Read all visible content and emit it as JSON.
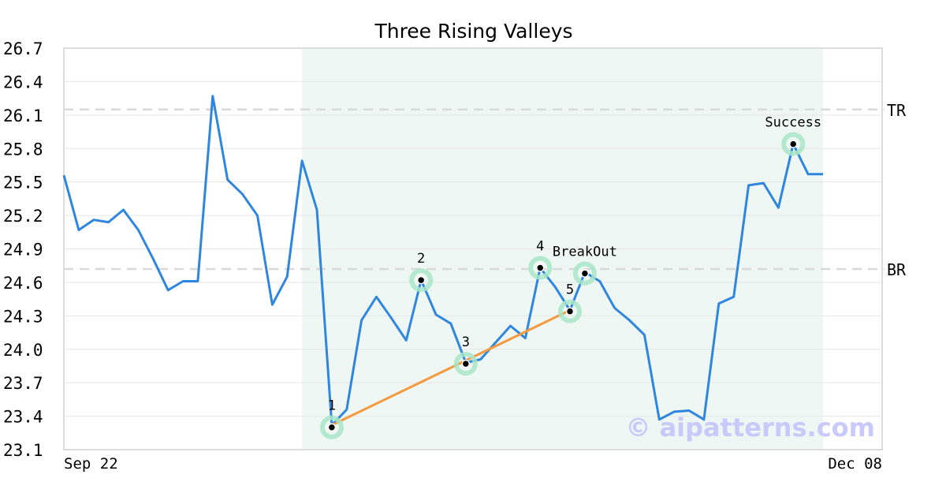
{
  "chart_data": {
    "type": "line",
    "title": "Three Rising Valleys",
    "ylim": [
      23.1,
      26.7
    ],
    "yticks": [
      "23.1",
      "23.4",
      "23.7",
      "24.0",
      "24.3",
      "24.6",
      "24.9",
      "25.2",
      "25.5",
      "25.8",
      "26.1",
      "26.4",
      "26.7"
    ],
    "x_tick_labels": [
      {
        "index": 0,
        "label": "Sep 22"
      },
      {
        "index": 51,
        "label": "Dec 08"
      }
    ],
    "grid": true,
    "series": [
      {
        "color": "#2f86df",
        "values": [
          25.56,
          25.07,
          25.16,
          25.14,
          25.25,
          25.07,
          24.81,
          24.53,
          24.61,
          24.61,
          26.27,
          25.52,
          25.39,
          25.2,
          24.4,
          24.65,
          25.69,
          25.25,
          23.32,
          23.46,
          24.26,
          24.47,
          24.28,
          24.08,
          24.62,
          24.31,
          24.23,
          23.88,
          23.91,
          24.06,
          24.21,
          24.1,
          24.73,
          24.56,
          24.35,
          24.69,
          24.61,
          24.37,
          24.26,
          24.13,
          23.37,
          23.44,
          23.45,
          23.37,
          24.41,
          24.47,
          25.47,
          25.49,
          25.27,
          25.84,
          25.57,
          25.57
        ]
      }
    ],
    "pattern_region": {
      "start_index": 16,
      "end_index": 51,
      "color": "#eef7f3"
    },
    "reference_lines": [
      {
        "label": "TR",
        "value": 26.15
      },
      {
        "label": "BR",
        "value": 24.72
      }
    ],
    "trendline": {
      "color": "#f59a3e",
      "from_index": 18,
      "to_index": 34
    },
    "points": [
      {
        "label": "1",
        "index": 18,
        "value": 23.3
      },
      {
        "label": "2",
        "index": 24,
        "value": 24.62
      },
      {
        "label": "3",
        "index": 27,
        "value": 23.87
      },
      {
        "label": "4",
        "index": 32,
        "value": 24.73
      },
      {
        "label": "5",
        "index": 34,
        "value": 24.34
      },
      {
        "label": "BreakOut",
        "index": 35,
        "value": 24.68
      },
      {
        "label": "Success",
        "index": 49,
        "value": 25.84
      }
    ],
    "watermark": "© aipatterns.com"
  }
}
